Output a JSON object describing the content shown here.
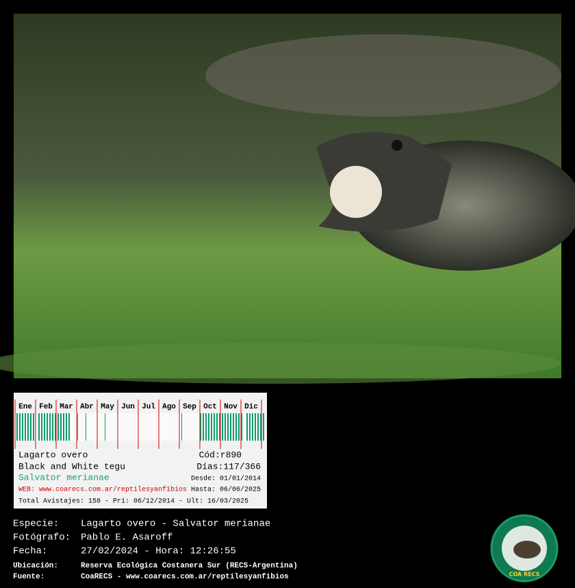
{
  "card": {
    "months": [
      "Ene",
      "Feb",
      "Mar",
      "Abr",
      "May",
      "Jun",
      "Jul",
      "Ago",
      "Sep",
      "Oct",
      "Nov",
      "Dic"
    ],
    "common_name": "Lagarto overo",
    "code": "Cód:r890",
    "english_name": "Black and White tegu",
    "days": "Días:117/366",
    "scientific_name": "Salvator merianae",
    "since": "Desde: 01/01/2014",
    "web": "WEB: www.coarecs.com.ar/reptilesyanfibios",
    "until": "Hasta: 06/06/2025",
    "totals": "Total Avistajes: 158 - Pri: 06/12/2014 - Ult: 16/03/2025"
  },
  "details": [
    {
      "label": "Especie:",
      "value": "Lagarto overo - Salvator merianae"
    },
    {
      "label": "Fotógrafo:",
      "value": "Pablo E. Asaroff"
    },
    {
      "label": "Fecha:",
      "value": "27/02/2024 - Hora: 12:26:55"
    },
    {
      "label": "Ubicación:",
      "value": "Reserva Ecológica Costanera Sur (RECS-Argentina)"
    },
    {
      "label": "Fuente:",
      "value": "CoaRECS - www.coarecs.com.ar/reptilesyanfibios"
    }
  ],
  "logo": {
    "text": "COA RECS"
  }
}
